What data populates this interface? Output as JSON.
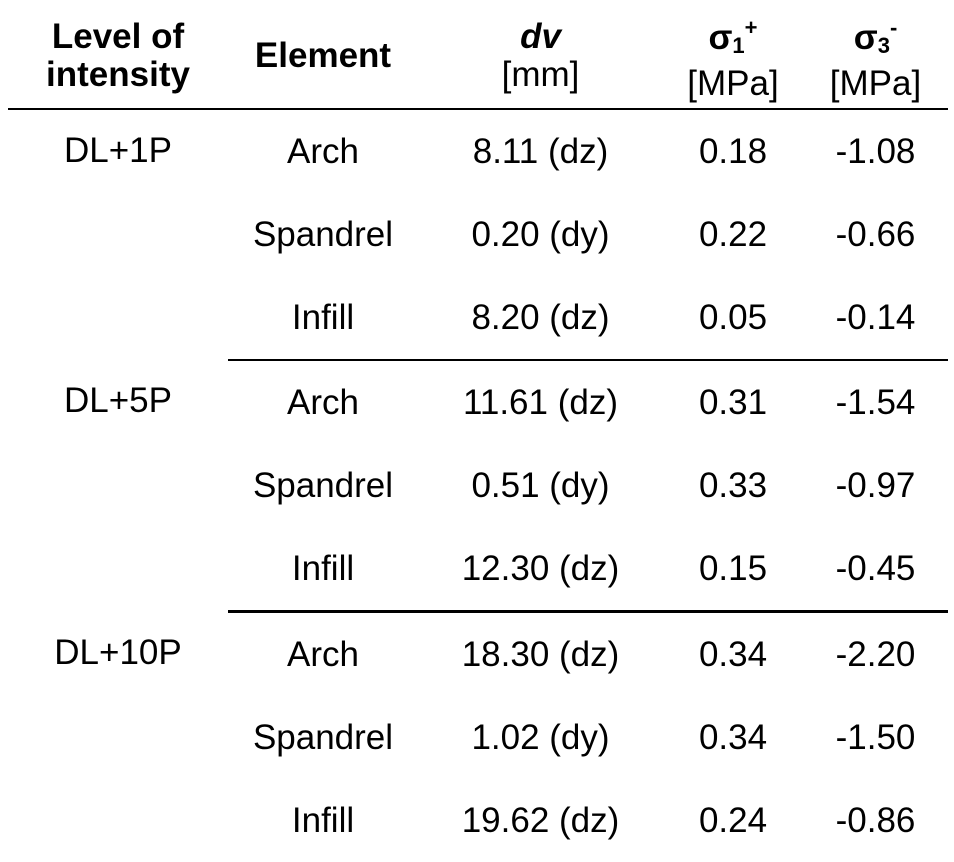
{
  "table": {
    "headers": {
      "level": [
        "Level of",
        "intensity"
      ],
      "element": "Element",
      "dv": {
        "symbol": "dv",
        "unit": "[mm]"
      },
      "sigma1": {
        "symbol": "σ",
        "sub": "1",
        "sup": "+",
        "unit": "[MPa]"
      },
      "sigma3": {
        "symbol": "σ",
        "sub": "3",
        "sup": "-",
        "unit": "[MPa]"
      }
    },
    "groups": [
      {
        "level": "DL+1P",
        "rows": [
          {
            "element": "Arch",
            "dv": "8.11 (dz)",
            "sigma1": "0.18",
            "sigma3": "-1.08"
          },
          {
            "element": "Spandrel",
            "dv": "0.20 (dy)",
            "sigma1": "0.22",
            "sigma3": "-0.66"
          },
          {
            "element": "Infill",
            "dv": "8.20 (dz)",
            "sigma1": "0.05",
            "sigma3": "-0.14"
          }
        ]
      },
      {
        "level": "DL+5P",
        "rows": [
          {
            "element": "Arch",
            "dv": "11.61 (dz)",
            "sigma1": "0.31",
            "sigma3": "-1.54"
          },
          {
            "element": "Spandrel",
            "dv": "0.51 (dy)",
            "sigma1": "0.33",
            "sigma3": "-0.97"
          },
          {
            "element": "Infill",
            "dv": "12.30 (dz)",
            "sigma1": "0.15",
            "sigma3": "-0.45"
          }
        ]
      },
      {
        "level": "DL+10P",
        "rows": [
          {
            "element": "Arch",
            "dv": "18.30 (dz)",
            "sigma1": "0.34",
            "sigma3": "-2.20"
          },
          {
            "element": "Spandrel",
            "dv": "1.02 (dy)",
            "sigma1": "0.34",
            "sigma3": "-1.50"
          },
          {
            "element": "Infill",
            "dv": "19.62 (dz)",
            "sigma1": "0.24",
            "sigma3": "-0.86"
          }
        ]
      }
    ]
  }
}
